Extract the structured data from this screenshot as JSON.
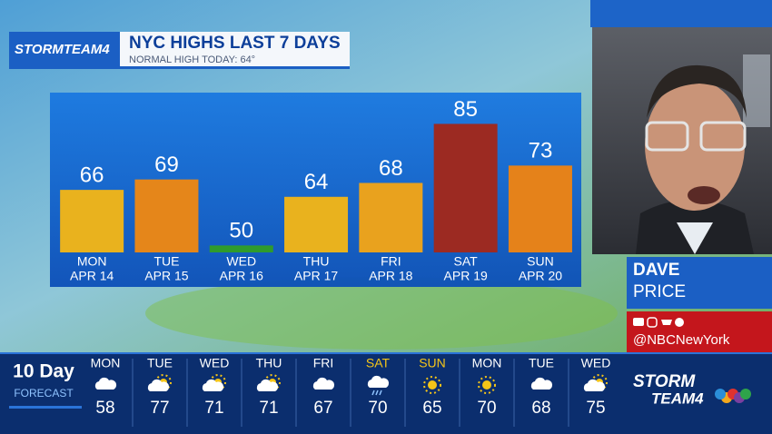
{
  "chart_data": {
    "type": "bar",
    "title": "NYC HIGHS LAST 7 DAYS",
    "subtitle": "NORMAL HIGH TODAY: 64°",
    "categories": [
      [
        "MON",
        "APR 14"
      ],
      [
        "TUE",
        "APR 15"
      ],
      [
        "WED",
        "APR 16"
      ],
      [
        "THU",
        "APR 17"
      ],
      [
        "FRI",
        "APR 18"
      ],
      [
        "SAT",
        "APR 19"
      ],
      [
        "SUN",
        "APR 20"
      ]
    ],
    "values": [
      66,
      69,
      50,
      64,
      68,
      85,
      73
    ],
    "colors": [
      "#e9b21e",
      "#e5861a",
      "#2f9b2c",
      "#e9b21e",
      "#e9a21e",
      "#9c2a22",
      "#e5821a"
    ],
    "ylim": [
      48,
      94
    ]
  },
  "branding": {
    "logo": "STORMTEAM4",
    "footer_logo_top": "STORM",
    "footer_logo_bottom": "TEAM4"
  },
  "presenter": {
    "first_name": "DAVE",
    "last_name": "PRICE",
    "handle": "@NBCNewYork"
  },
  "forecast": {
    "title": "10 Day",
    "subtitle": "FORECAST",
    "days": [
      {
        "day": "MON",
        "high": 58,
        "icon": "cloud",
        "weekend": false
      },
      {
        "day": "TUE",
        "high": 77,
        "icon": "partly",
        "weekend": false
      },
      {
        "day": "WED",
        "high": 71,
        "icon": "partly",
        "weekend": false
      },
      {
        "day": "THU",
        "high": 71,
        "icon": "partly",
        "weekend": false
      },
      {
        "day": "FRI",
        "high": 67,
        "icon": "cloud",
        "weekend": false
      },
      {
        "day": "SAT",
        "high": 70,
        "icon": "rain",
        "weekend": true
      },
      {
        "day": "SUN",
        "high": 65,
        "icon": "sun",
        "weekend": true
      },
      {
        "day": "MON",
        "high": 70,
        "icon": "sun",
        "weekend": false
      },
      {
        "day": "TUE",
        "high": 68,
        "icon": "cloud",
        "weekend": false
      },
      {
        "day": "WED",
        "high": 75,
        "icon": "partly",
        "weekend": false
      }
    ]
  }
}
